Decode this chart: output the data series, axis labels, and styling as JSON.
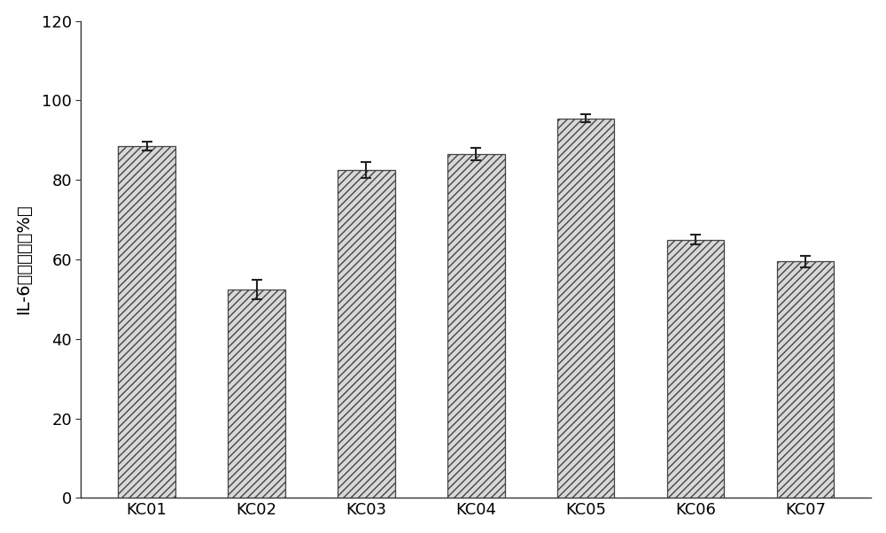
{
  "categories": [
    "KC01",
    "KC02",
    "KC03",
    "KC04",
    "KC05",
    "KC06",
    "KC07"
  ],
  "values": [
    88.5,
    52.5,
    82.5,
    86.5,
    95.5,
    65.0,
    59.5
  ],
  "errors": [
    1.2,
    2.5,
    2.0,
    1.5,
    1.0,
    1.2,
    1.5
  ],
  "ylabel": "IL-6的吸附率（%）",
  "ylim": [
    0,
    120
  ],
  "yticks": [
    0,
    20,
    40,
    60,
    80,
    100,
    120
  ],
  "bar_color": "#d8d8d8",
  "bar_edgecolor": "#444444",
  "hatch": "////",
  "background_color": "#ffffff",
  "figure_bg": "#ffffff",
  "bar_width": 0.52,
  "ylabel_fontsize": 14,
  "tick_fontsize": 13,
  "xtick_fontsize": 13
}
